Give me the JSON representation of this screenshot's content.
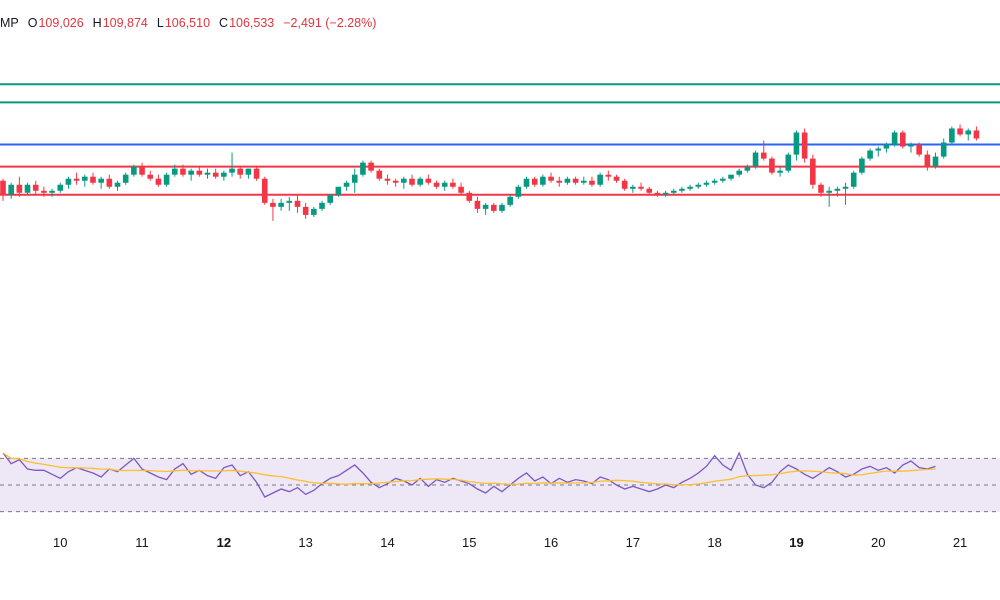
{
  "header": {
    "symbol_suffix": "MP",
    "open_label": "O",
    "open": "109,026",
    "high_label": "H",
    "high": "109,874",
    "low_label": "L",
    "low": "106,510",
    "close_label": "C",
    "close": "106,533",
    "change": "−2,491 (−2.28%)"
  },
  "colors": {
    "up": "#089981",
    "down": "#f23645",
    "resistance_green": "#089981",
    "pivot_blue": "#2962ff",
    "support_red": "#f23645",
    "rsi_line": "#7e57c2",
    "rsi_ma": "#fbc02d",
    "rsi_band": "#ede7f6"
  },
  "chart_data": {
    "type": "candlestick",
    "title": "",
    "price_range": [
      103500,
      113200
    ],
    "x_ticks": [
      {
        "label": "10",
        "index": 7,
        "bold": false
      },
      {
        "label": "11",
        "index": 17,
        "bold": false
      },
      {
        "label": "12",
        "index": 27,
        "bold": true
      },
      {
        "label": "13",
        "index": 37,
        "bold": false
      },
      {
        "label": "14",
        "index": 47,
        "bold": false
      },
      {
        "label": "15",
        "index": 57,
        "bold": false
      },
      {
        "label": "16",
        "index": 67,
        "bold": false
      },
      {
        "label": "17",
        "index": 77,
        "bold": false
      },
      {
        "label": "18",
        "index": 87,
        "bold": false
      },
      {
        "label": "19",
        "index": 97,
        "bold": true
      },
      {
        "label": "20",
        "index": 107,
        "bold": false
      },
      {
        "label": "21",
        "index": 117,
        "bold": false
      }
    ],
    "horizontal_levels": [
      {
        "name": "resistance-2",
        "value": 112100,
        "color": "#089981"
      },
      {
        "name": "resistance-1",
        "value": 111650,
        "color": "#089981"
      },
      {
        "name": "pivot",
        "value": 110600,
        "color": "#2962ff"
      },
      {
        "name": "support-1",
        "value": 110050,
        "color": "#f23645"
      },
      {
        "name": "support-2",
        "value": 109350,
        "color": "#f23645"
      }
    ],
    "candles": [
      [
        109700,
        109750,
        109200,
        109350
      ],
      [
        109350,
        109650,
        109250,
        109600
      ],
      [
        109600,
        109800,
        109300,
        109400
      ],
      [
        109400,
        109650,
        109350,
        109600
      ],
      [
        109600,
        109700,
        109350,
        109450
      ],
      [
        109450,
        109550,
        109300,
        109400
      ],
      [
        109400,
        109500,
        109300,
        109450
      ],
      [
        109450,
        109650,
        109400,
        109600
      ],
      [
        109600,
        109800,
        109500,
        109750
      ],
      [
        109750,
        109900,
        109600,
        109700
      ],
      [
        109700,
        109850,
        109550,
        109800
      ],
      [
        109800,
        109900,
        109600,
        109650
      ],
      [
        109650,
        109800,
        109500,
        109750
      ],
      [
        109750,
        109850,
        109500,
        109550
      ],
      [
        109550,
        109700,
        109450,
        109650
      ],
      [
        109650,
        109900,
        109600,
        109850
      ],
      [
        109850,
        110100,
        109800,
        110050
      ],
      [
        110050,
        110150,
        109800,
        109850
      ],
      [
        109850,
        109950,
        109700,
        109750
      ],
      [
        109750,
        109850,
        109550,
        109600
      ],
      [
        109600,
        109900,
        109550,
        109850
      ],
      [
        109850,
        110100,
        109800,
        110000
      ],
      [
        110000,
        110100,
        109800,
        109850
      ],
      [
        109850,
        110000,
        109700,
        109950
      ],
      [
        109950,
        110050,
        109800,
        109850
      ],
      [
        109850,
        110000,
        109750,
        109900
      ],
      [
        109900,
        110000,
        109750,
        109800
      ],
      [
        109800,
        109950,
        109700,
        109900
      ],
      [
        109900,
        110400,
        109800,
        110000
      ],
      [
        110000,
        110050,
        109750,
        109850
      ],
      [
        109850,
        110000,
        109750,
        110000
      ],
      [
        110000,
        110050,
        109700,
        109750
      ],
      [
        109750,
        109800,
        109100,
        109150
      ],
      [
        109150,
        109250,
        108700,
        109050
      ],
      [
        109050,
        109250,
        108950,
        109150
      ],
      [
        109150,
        109300,
        108950,
        109200
      ],
      [
        109200,
        109350,
        108900,
        109050
      ],
      [
        109050,
        109150,
        108750,
        108850
      ],
      [
        108850,
        109050,
        108800,
        109000
      ],
      [
        109000,
        109200,
        108950,
        109150
      ],
      [
        109150,
        109350,
        109100,
        109350
      ],
      [
        109350,
        109550,
        109300,
        109550
      ],
      [
        109550,
        109700,
        109450,
        109650
      ],
      [
        109650,
        110000,
        109400,
        109850
      ],
      [
        109850,
        110200,
        109800,
        110150
      ],
      [
        110150,
        110200,
        109900,
        109950
      ],
      [
        109950,
        110000,
        109700,
        109750
      ],
      [
        109750,
        109850,
        109600,
        109700
      ],
      [
        109700,
        109750,
        109550,
        109650
      ],
      [
        109650,
        109800,
        109500,
        109750
      ],
      [
        109750,
        109850,
        109550,
        109600
      ],
      [
        109600,
        109800,
        109550,
        109750
      ],
      [
        109750,
        109850,
        109600,
        109650
      ],
      [
        109650,
        109700,
        109500,
        109550
      ],
      [
        109550,
        109700,
        109450,
        109650
      ],
      [
        109650,
        109750,
        109500,
        109550
      ],
      [
        109550,
        109650,
        109350,
        109400
      ],
      [
        109400,
        109450,
        109150,
        109200
      ],
      [
        109200,
        109300,
        108900,
        109000
      ],
      [
        109000,
        109150,
        108850,
        109100
      ],
      [
        109100,
        109150,
        108900,
        108950
      ],
      [
        108950,
        109150,
        108900,
        109100
      ],
      [
        109100,
        109350,
        109050,
        109300
      ],
      [
        109300,
        109600,
        109250,
        109550
      ],
      [
        109550,
        109800,
        109500,
        109750
      ],
      [
        109750,
        109800,
        109550,
        109600
      ],
      [
        109600,
        109850,
        109550,
        109800
      ],
      [
        109800,
        109900,
        109650,
        109700
      ],
      [
        109700,
        109800,
        109550,
        109650
      ],
      [
        109650,
        109800,
        109600,
        109750
      ],
      [
        109750,
        109800,
        109600,
        109650
      ],
      [
        109650,
        109800,
        109600,
        109700
      ],
      [
        109700,
        109800,
        109550,
        109600
      ],
      [
        109600,
        109900,
        109550,
        109850
      ],
      [
        109850,
        109950,
        109700,
        109800
      ],
      [
        109800,
        109850,
        109650,
        109700
      ],
      [
        109700,
        109750,
        109450,
        109500
      ],
      [
        109500,
        109600,
        109400,
        109550
      ],
      [
        109550,
        109650,
        109450,
        109500
      ],
      [
        109500,
        109550,
        109350,
        109400
      ],
      [
        109400,
        109450,
        109300,
        109350
      ],
      [
        109350,
        109450,
        109300,
        109400
      ],
      [
        109400,
        109500,
        109350,
        109450
      ],
      [
        109450,
        109550,
        109400,
        109500
      ],
      [
        109500,
        109600,
        109450,
        109550
      ],
      [
        109550,
        109650,
        109500,
        109600
      ],
      [
        109600,
        109700,
        109550,
        109650
      ],
      [
        109650,
        109750,
        109600,
        109700
      ],
      [
        109700,
        109800,
        109650,
        109750
      ],
      [
        109750,
        109850,
        109700,
        109850
      ],
      [
        109850,
        110000,
        109800,
        109950
      ],
      [
        109950,
        110100,
        109900,
        110050
      ],
      [
        110050,
        110450,
        110000,
        110400
      ],
      [
        110400,
        110700,
        110200,
        110250
      ],
      [
        110250,
        110300,
        109850,
        109900
      ],
      [
        109900,
        110050,
        109800,
        109950
      ],
      [
        109950,
        110400,
        109900,
        110350
      ],
      [
        110350,
        110950,
        110200,
        110900
      ],
      [
        110900,
        111000,
        110150,
        110250
      ],
      [
        110250,
        110350,
        109500,
        109600
      ],
      [
        109600,
        109650,
        109300,
        109400
      ],
      [
        109400,
        109550,
        109050,
        109450
      ],
      [
        109450,
        109550,
        109300,
        109500
      ],
      [
        109500,
        109650,
        109100,
        109550
      ],
      [
        109550,
        109950,
        109500,
        109900
      ],
      [
        109900,
        110300,
        109850,
        110250
      ],
      [
        110250,
        110500,
        110200,
        110450
      ],
      [
        110450,
        110550,
        110300,
        110500
      ],
      [
        110500,
        110650,
        110400,
        110600
      ],
      [
        110600,
        110950,
        110550,
        110900
      ],
      [
        110900,
        110950,
        110500,
        110550
      ],
      [
        110550,
        110650,
        110400,
        110600
      ],
      [
        110600,
        110650,
        110300,
        110350
      ],
      [
        110350,
        110450,
        109950,
        110050
      ],
      [
        110050,
        110400,
        110000,
        110300
      ],
      [
        110300,
        110750,
        110250,
        110650
      ],
      [
        110650,
        111050,
        110600,
        111000
      ],
      [
        111000,
        111100,
        110800,
        110850
      ],
      [
        110850,
        111000,
        110700,
        110950
      ],
      [
        110950,
        111050,
        110700,
        110750
      ]
    ],
    "rsi": {
      "range": [
        20,
        80
      ],
      "upper": 70,
      "middle": 50,
      "lower": 30,
      "values": [
        74,
        66,
        69,
        62,
        61,
        61,
        58,
        55,
        60,
        63,
        61,
        59,
        56,
        62,
        60,
        65,
        70,
        62,
        59,
        56,
        54,
        62,
        66,
        58,
        61,
        57,
        55,
        63,
        65,
        57,
        60,
        52,
        41,
        44,
        47,
        45,
        48,
        43,
        46,
        51,
        55,
        57,
        61,
        65,
        59,
        52,
        48,
        51,
        55,
        53,
        50,
        55,
        49,
        54,
        52,
        55,
        53,
        51,
        47,
        44,
        49,
        45,
        50,
        55,
        59,
        53,
        56,
        51,
        55,
        52,
        54,
        53,
        51,
        56,
        54,
        50,
        47,
        49,
        47,
        45,
        47,
        50,
        48,
        52,
        55,
        59,
        64,
        72,
        65,
        61,
        74,
        58,
        50,
        48,
        52,
        60,
        65,
        62,
        58,
        55,
        59,
        63,
        60,
        56,
        58,
        62,
        64,
        61,
        63,
        59,
        65,
        68,
        63,
        62,
        64
      ]
    }
  }
}
